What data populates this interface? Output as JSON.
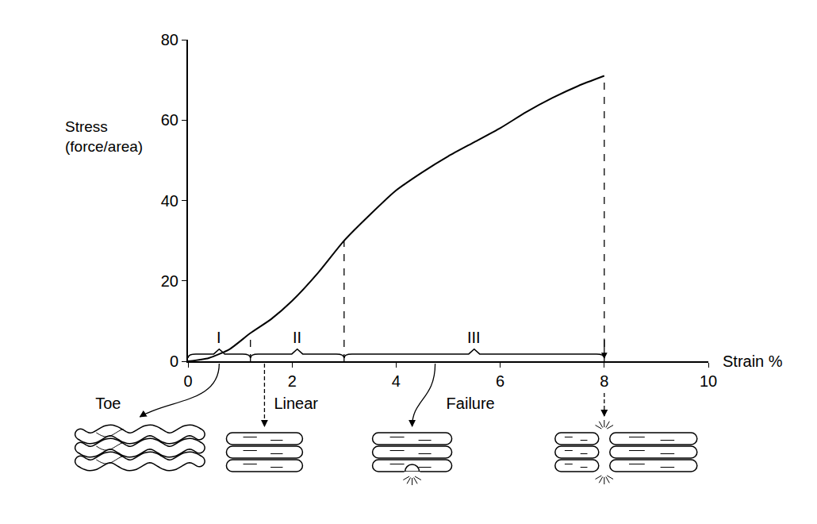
{
  "chart_data": {
    "type": "line",
    "x_label": "Strain %",
    "y_label": "Stress\n(force/area)",
    "x": [
      0,
      0.4,
      0.8,
      1.2,
      1.6,
      2,
      2.5,
      3,
      3.5,
      4,
      4.5,
      5,
      5.5,
      6,
      6.5,
      7,
      7.5,
      8
    ],
    "values": [
      0,
      0.8,
      3,
      7,
      10.5,
      15,
      22,
      30,
      36.5,
      42.5,
      47,
      51,
      54.5,
      58,
      62,
      65.5,
      68.5,
      71
    ],
    "color": "#000000",
    "line_style": "solid",
    "xlim": [
      0,
      10
    ],
    "ylim": [
      0,
      80
    ],
    "xticks": [
      0,
      2,
      4,
      6,
      8,
      10
    ],
    "yticks": [
      0,
      20,
      40,
      60,
      80
    ],
    "grid": false,
    "regions": [
      {
        "label": "I",
        "from": 0,
        "to": 1.2,
        "phase": "Toe"
      },
      {
        "label": "II",
        "from": 1.2,
        "to": 3,
        "phase": "Linear"
      },
      {
        "label": "III",
        "from": 3,
        "to": 8,
        "phase": "Failure"
      }
    ]
  }
}
